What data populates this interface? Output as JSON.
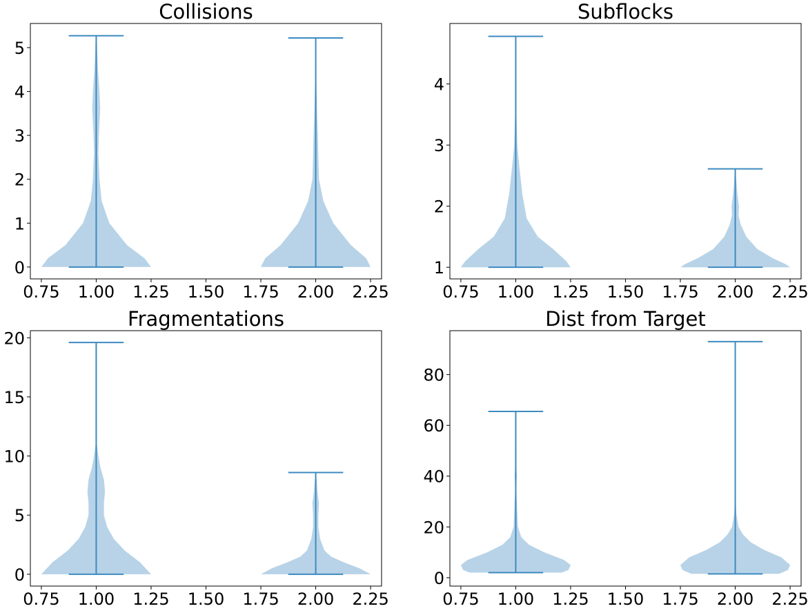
{
  "chart_data": [
    {
      "type": "violin",
      "title": "Collisions",
      "xlim": [
        0.7,
        2.3
      ],
      "ylim": [
        -0.27,
        5.55
      ],
      "xticks": [
        0.75,
        1.0,
        1.25,
        1.5,
        1.75,
        2.0,
        2.25
      ],
      "xtick_labels": [
        "0.75",
        "1.00",
        "1.25",
        "1.50",
        "1.75",
        "2.00",
        "2.25"
      ],
      "yticks": [
        0,
        1,
        2,
        3,
        4,
        5
      ],
      "ytick_labels": [
        "0",
        "1",
        "2",
        "3",
        "4",
        "5"
      ],
      "violins": [
        {
          "position": 1,
          "min": 0,
          "max": 5.27,
          "profile": [
            [
              0,
              0.25
            ],
            [
              0.2,
              0.22
            ],
            [
              0.5,
              0.14
            ],
            [
              1.0,
              0.06
            ],
            [
              1.5,
              0.025
            ],
            [
              2.0,
              0.015
            ],
            [
              2.6,
              0.01
            ],
            [
              3.0,
              0.012
            ],
            [
              3.6,
              0.018
            ],
            [
              4.0,
              0.015
            ],
            [
              4.5,
              0.008
            ],
            [
              5.0,
              0.004
            ],
            [
              5.27,
              0.002
            ]
          ]
        },
        {
          "position": 2,
          "min": 0,
          "max": 5.22,
          "profile": [
            [
              0,
              0.25
            ],
            [
              0.2,
              0.23
            ],
            [
              0.5,
              0.16
            ],
            [
              1.0,
              0.08
            ],
            [
              1.5,
              0.035
            ],
            [
              2.0,
              0.015
            ],
            [
              2.5,
              0.012
            ],
            [
              3.0,
              0.01
            ],
            [
              3.4,
              0.007
            ],
            [
              4.0,
              0.004
            ],
            [
              4.5,
              0.002
            ],
            [
              5.0,
              0.001
            ],
            [
              5.22,
              0.001
            ]
          ]
        }
      ]
    },
    {
      "type": "violin",
      "title": "Subflocks",
      "xlim": [
        0.7,
        2.3
      ],
      "ylim": [
        0.81,
        4.99
      ],
      "xticks": [
        0.75,
        1.0,
        1.25,
        1.5,
        1.75,
        2.0,
        2.25
      ],
      "xtick_labels": [
        "0.75",
        "1.00",
        "1.25",
        "1.50",
        "1.75",
        "2.00",
        "2.25"
      ],
      "yticks": [
        1,
        2,
        3,
        4
      ],
      "ytick_labels": [
        "1",
        "2",
        "3",
        "4"
      ],
      "violins": [
        {
          "position": 1,
          "min": 1,
          "max": 4.78,
          "profile": [
            [
              1.0,
              0.25
            ],
            [
              1.1,
              0.23
            ],
            [
              1.3,
              0.17
            ],
            [
              1.5,
              0.1
            ],
            [
              1.8,
              0.05
            ],
            [
              2.2,
              0.03
            ],
            [
              2.7,
              0.015
            ],
            [
              3.0,
              0.007
            ],
            [
              3.5,
              0.003
            ],
            [
              4.0,
              0.002
            ],
            [
              4.78,
              0.001
            ]
          ]
        },
        {
          "position": 2,
          "min": 1,
          "max": 2.61,
          "profile": [
            [
              1.0,
              0.25
            ],
            [
              1.05,
              0.23
            ],
            [
              1.15,
              0.17
            ],
            [
              1.3,
              0.1
            ],
            [
              1.5,
              0.05
            ],
            [
              1.7,
              0.025
            ],
            [
              1.85,
              0.015
            ],
            [
              2.0,
              0.017
            ],
            [
              2.2,
              0.01
            ],
            [
              2.4,
              0.005
            ],
            [
              2.61,
              0.001
            ]
          ]
        }
      ]
    },
    {
      "type": "violin",
      "title": "Fragmentations",
      "xlim": [
        0.7,
        2.3
      ],
      "ylim": [
        -1.0,
        20.6
      ],
      "xticks": [
        0.75,
        1.0,
        1.25,
        1.5,
        1.75,
        2.0,
        2.25
      ],
      "xtick_labels": [
        "0.75",
        "1.00",
        "1.25",
        "1.50",
        "1.75",
        "2.00",
        "2.25"
      ],
      "yticks": [
        0,
        5,
        10,
        15,
        20
      ],
      "ytick_labels": [
        "0",
        "5",
        "10",
        "15",
        "20"
      ],
      "violins": [
        {
          "position": 1,
          "min": 0,
          "max": 19.6,
          "profile": [
            [
              0,
              0.25
            ],
            [
              1.0,
              0.2
            ],
            [
              2.0,
              0.13
            ],
            [
              3.0,
              0.08
            ],
            [
              4.0,
              0.05
            ],
            [
              5.0,
              0.035
            ],
            [
              6.0,
              0.035
            ],
            [
              7.0,
              0.04
            ],
            [
              8.0,
              0.035
            ],
            [
              9.0,
              0.02
            ],
            [
              10.0,
              0.01
            ],
            [
              11.0,
              0.003
            ],
            [
              13.0,
              0.002
            ],
            [
              15.0,
              0.001
            ],
            [
              19.6,
              0.001
            ]
          ]
        },
        {
          "position": 2,
          "min": 0,
          "max": 8.6,
          "profile": [
            [
              0,
              0.25
            ],
            [
              0.5,
              0.2
            ],
            [
              1.0,
              0.13
            ],
            [
              1.5,
              0.07
            ],
            [
              2.0,
              0.04
            ],
            [
              3.0,
              0.02
            ],
            [
              4.0,
              0.012
            ],
            [
              5.0,
              0.012
            ],
            [
              6.0,
              0.015
            ],
            [
              7.0,
              0.008
            ],
            [
              8.0,
              0.004
            ],
            [
              8.6,
              0.001
            ]
          ]
        }
      ]
    },
    {
      "type": "violin",
      "title": "Dist from Target",
      "xlim": [
        0.7,
        2.3
      ],
      "ylim": [
        -3.3,
        97.3
      ],
      "xticks": [
        0.75,
        1.0,
        1.25,
        1.5,
        1.75,
        2.0,
        2.25
      ],
      "xtick_labels": [
        "0.75",
        "1.00",
        "1.25",
        "1.50",
        "1.75",
        "2.00",
        "2.25"
      ],
      "yticks": [
        0,
        20,
        40,
        60,
        80
      ],
      "ytick_labels": [
        "0",
        "20",
        "40",
        "60",
        "80"
      ],
      "violins": [
        {
          "position": 1,
          "min": 2,
          "max": 65.5,
          "profile": [
            [
              2.0,
              0.21
            ],
            [
              3.0,
              0.24
            ],
            [
              5.0,
              0.25
            ],
            [
              7.0,
              0.22
            ],
            [
              10.0,
              0.13
            ],
            [
              13.0,
              0.06
            ],
            [
              16.0,
              0.025
            ],
            [
              20.0,
              0.01
            ],
            [
              30.0,
              0.005
            ],
            [
              35.0,
              0.002
            ],
            [
              40.0,
              0.005
            ],
            [
              45.0,
              0.002
            ],
            [
              50.0,
              0.002
            ],
            [
              65.5,
              0.001
            ]
          ]
        },
        {
          "position": 2,
          "min": 1.5,
          "max": 93.0,
          "profile": [
            [
              1.5,
              0.2
            ],
            [
              3.0,
              0.24
            ],
            [
              5.0,
              0.25
            ],
            [
              8.0,
              0.21
            ],
            [
              11.0,
              0.13
            ],
            [
              14.0,
              0.07
            ],
            [
              17.0,
              0.035
            ],
            [
              20.0,
              0.015
            ],
            [
              25.0,
              0.005
            ],
            [
              30.0,
              0.002
            ],
            [
              50.0,
              0.001
            ],
            [
              93.0,
              0.001
            ]
          ]
        }
      ]
    }
  ],
  "colors": {
    "body": "#B8D3E7",
    "lines": "#3C8AC0",
    "axes": "#000000",
    "background": "#FFFFFF"
  }
}
